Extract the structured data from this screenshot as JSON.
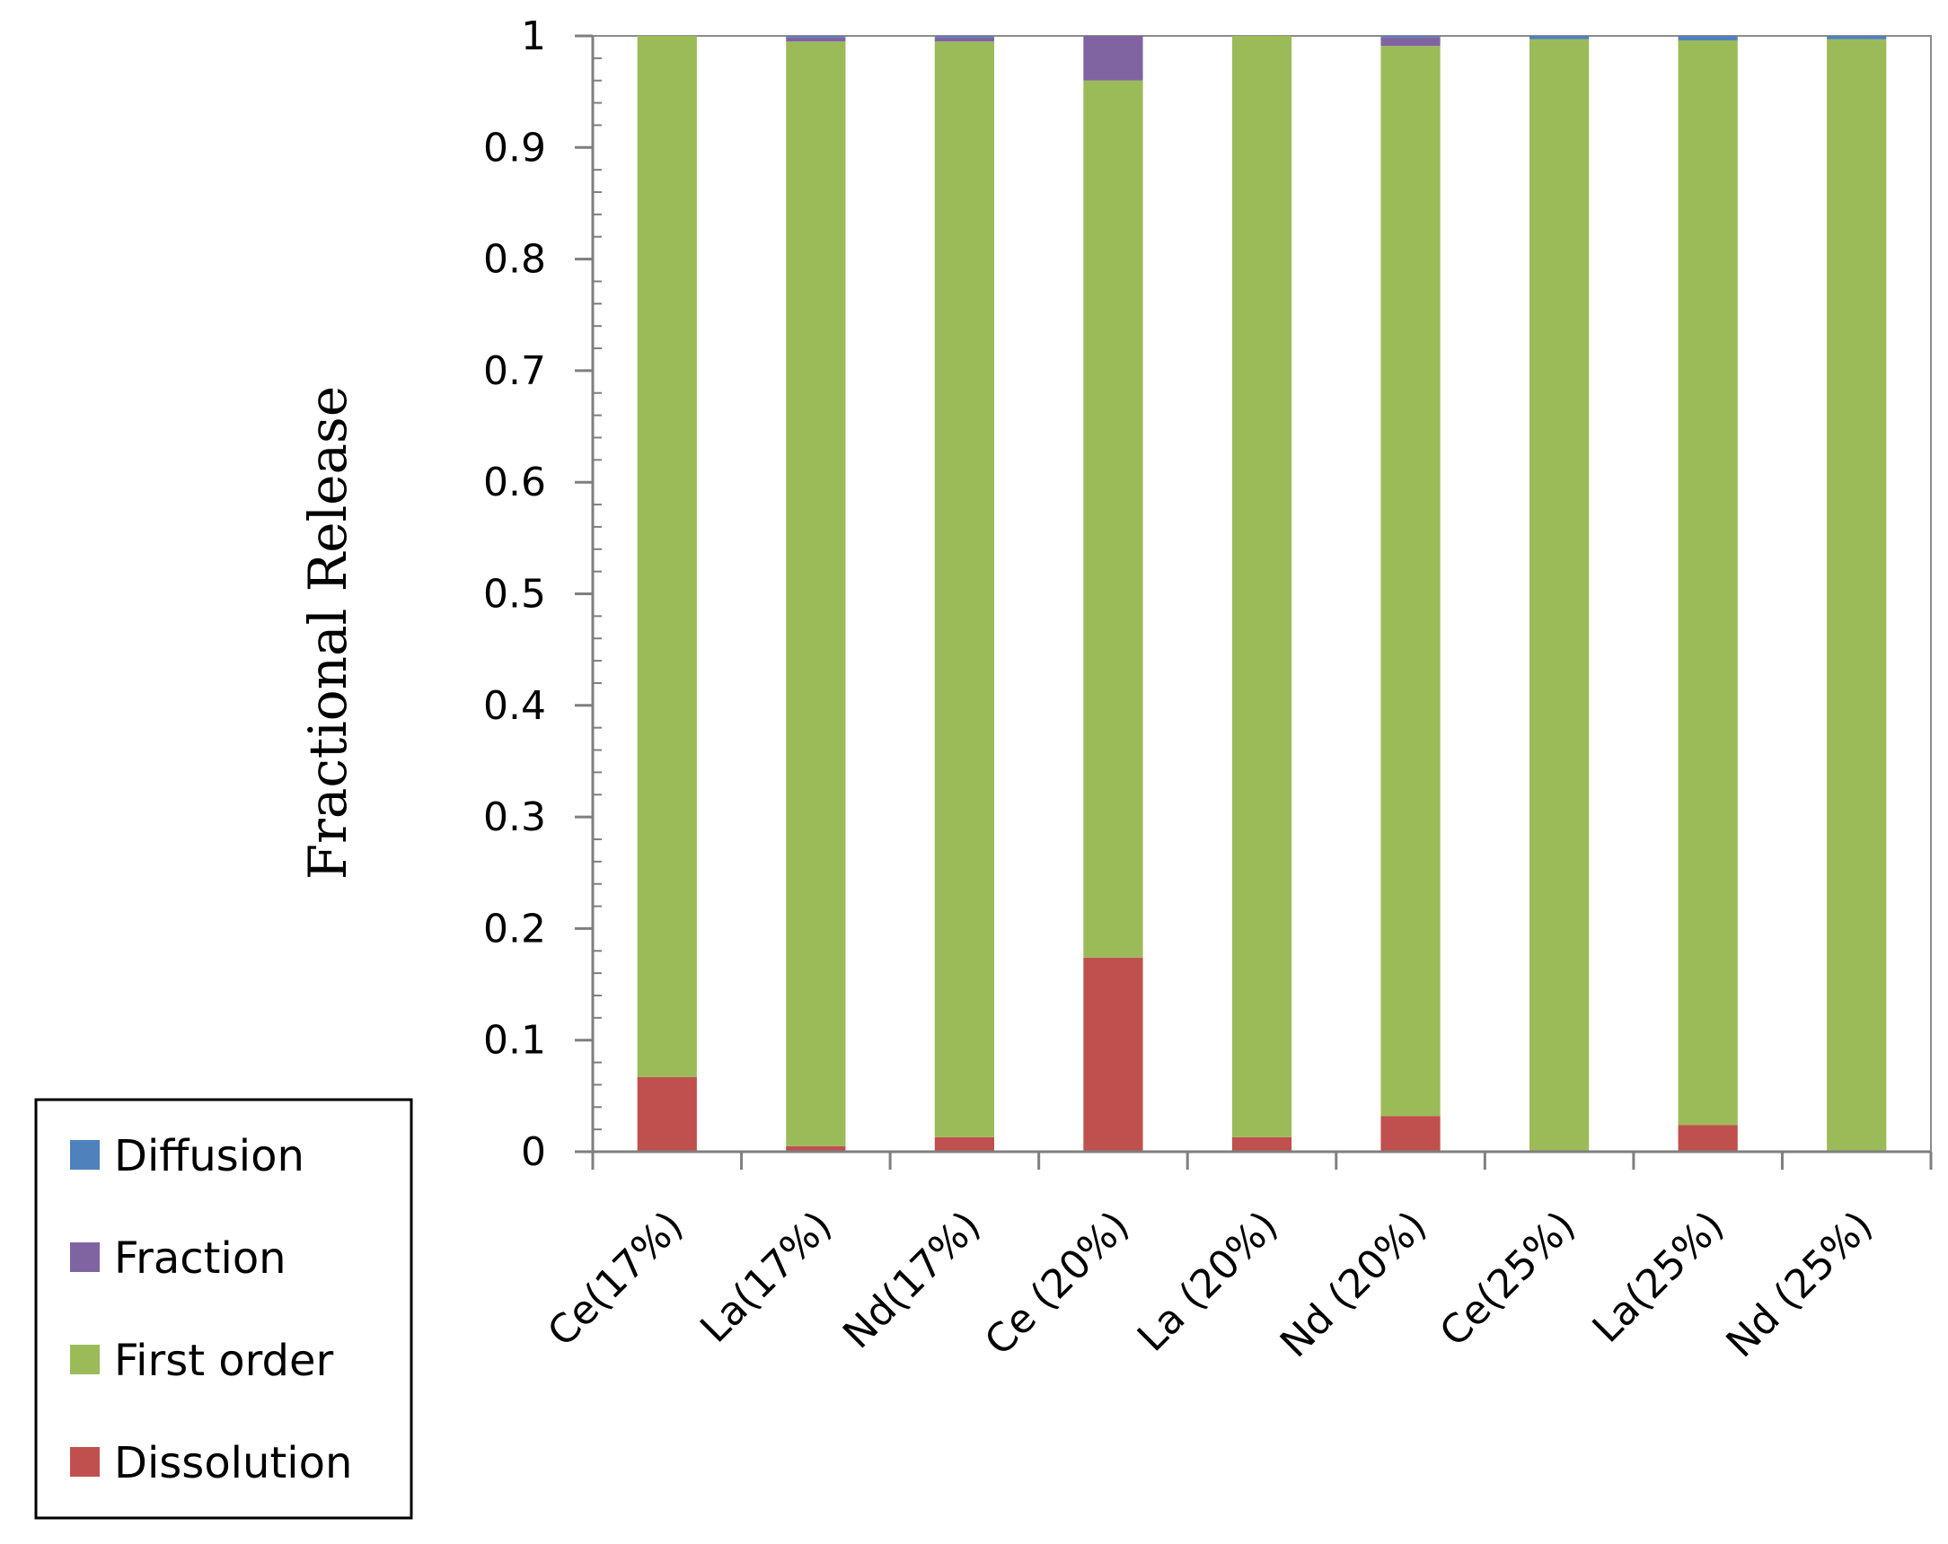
{
  "chart_data": {
    "type": "bar",
    "stacked": true,
    "title": "",
    "xlabel": "",
    "ylabel": "Fractional Release",
    "ylim": [
      0,
      1
    ],
    "yticks": [
      "0",
      "0.1",
      "0.2",
      "0.3",
      "0.4",
      "0.5",
      "0.6",
      "0.7",
      "0.8",
      "0.9",
      "1"
    ],
    "grid": false,
    "legend_position": "bottom-left",
    "categories": [
      "Ce(17%)",
      "La(17%)",
      "Nd(17%)",
      "Ce (20%)",
      "La (20%)",
      "Nd (20%)",
      "Ce(25%)",
      "La(25%)",
      "Nd (25%)"
    ],
    "series": [
      {
        "name": "Dissolution",
        "color": "#c0504d",
        "values": [
          0.067,
          0.005,
          0.013,
          0.174,
          0.013,
          0.032,
          0.0,
          0.024,
          0.0
        ]
      },
      {
        "name": "First order",
        "color": "#9bbb59",
        "values": [
          0.933,
          0.99,
          0.982,
          0.786,
          0.987,
          0.959,
          0.997,
          0.972,
          0.997
        ]
      },
      {
        "name": "Fraction",
        "color": "#8064a2",
        "values": [
          0.0,
          0.004,
          0.004,
          0.04,
          0.0,
          0.008,
          0.0,
          0.0,
          0.0
        ]
      },
      {
        "name": "Diffusion",
        "color": "#4f81bd",
        "values": [
          0.0,
          0.001,
          0.001,
          0.0,
          0.0,
          0.001,
          0.003,
          0.004,
          0.003
        ]
      }
    ],
    "legend_order": [
      "Diffusion",
      "Fraction",
      "First order",
      "Dissolution"
    ]
  }
}
